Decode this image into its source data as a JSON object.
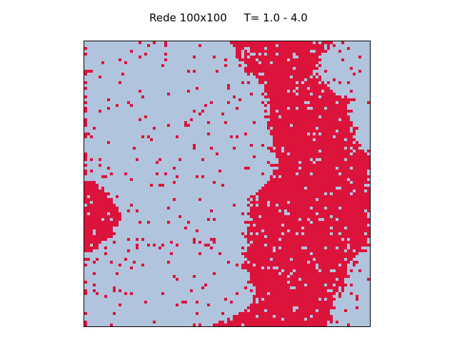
{
  "figure": {
    "title": "Rede 100x100     T= 1.0 - 4.0"
  },
  "lattice": {
    "rows": 100,
    "cols": 100,
    "colors": {
      "state_down": "#b0c4de",
      "state_up": "#dc143c"
    },
    "icon": "spin-lattice-grid"
  }
}
